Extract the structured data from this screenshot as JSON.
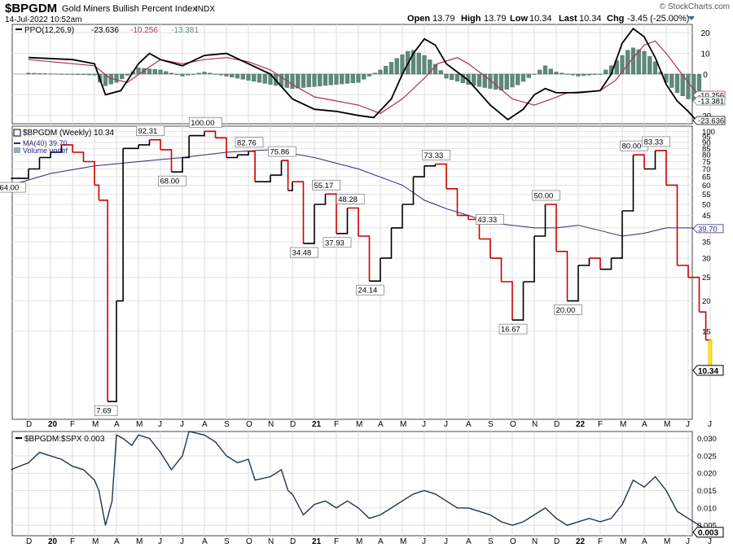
{
  "header": {
    "symbol": "$BPGDM",
    "name": "Gold Miners Bullish Percent Index",
    "exchange": "INDX",
    "date": "14-Jul-2022 10:52am",
    "watermark": "© StockCharts.com",
    "quote": {
      "open_label": "Open",
      "open": "13.79",
      "high_label": "High",
      "high": "13.79",
      "low_label": "Low",
      "low": "10.34",
      "last_label": "Last",
      "last": "10.34",
      "chg_label": "Chg",
      "chg": "-3.45 (-25.00%)"
    }
  },
  "colors": {
    "up": "#000000",
    "down": "#cc0000",
    "ma": "#2a2a80",
    "hist": "#5f8a7a",
    "ppo_signal": "#b03050",
    "highlight": "#ffee00"
  },
  "months": [
    "D",
    "20",
    "F",
    "M",
    "A",
    "M",
    "J",
    "J",
    "A",
    "S",
    "O",
    "N",
    "D",
    "21",
    "F",
    "M",
    "A",
    "M",
    "J",
    "J",
    "A",
    "S",
    "O",
    "N",
    "D",
    "22",
    "F",
    "M",
    "A",
    "M",
    "J",
    "J"
  ],
  "chart_data": [
    {
      "type": "line",
      "panel": "ppo",
      "legend": {
        "name": "PPO(12,26,9)",
        "ppo": "-23.636",
        "signal": "-10.256",
        "hist": "-13.381"
      },
      "yticks": [
        20,
        10,
        0,
        -10,
        -20
      ],
      "ylim": [
        -24,
        24
      ],
      "markers": {
        "signal": "-10.256",
        "hist": "-13.381",
        "ppo": "-23.636"
      },
      "series": [
        {
          "name": "PPO",
          "points": [
            [
              0,
              8
            ],
            [
              2,
              7
            ],
            [
              3,
              5
            ],
            [
              3.5,
              -10
            ],
            [
              4.2,
              -8
            ],
            [
              5,
              5
            ],
            [
              5.5,
              10
            ],
            [
              6,
              7
            ],
            [
              7,
              4
            ],
            [
              8,
              9
            ],
            [
              9,
              10
            ],
            [
              10,
              5
            ],
            [
              11,
              0
            ],
            [
              12,
              -12
            ],
            [
              13,
              -17
            ],
            [
              14,
              -18
            ],
            [
              15,
              -20
            ],
            [
              15.7,
              -21
            ],
            [
              16.5,
              -12
            ],
            [
              17,
              0
            ],
            [
              17.5,
              10
            ],
            [
              18,
              17
            ],
            [
              18.5,
              14
            ],
            [
              19,
              5
            ],
            [
              20,
              -3
            ],
            [
              21,
              -15
            ],
            [
              21.8,
              -22
            ],
            [
              22.5,
              -17
            ],
            [
              23,
              -10
            ],
            [
              23.5,
              -7
            ],
            [
              24,
              -9
            ],
            [
              25,
              -9
            ],
            [
              26,
              -8
            ],
            [
              26.5,
              0
            ],
            [
              27,
              15
            ],
            [
              27.5,
              22
            ],
            [
              28,
              18
            ],
            [
              28.5,
              8
            ],
            [
              29,
              -5
            ],
            [
              29.5,
              -13
            ],
            [
              30,
              -18
            ],
            [
              30.5,
              -24
            ]
          ]
        },
        {
          "name": "Signal",
          "points": [
            [
              0,
              7
            ],
            [
              3,
              4
            ],
            [
              3.7,
              -2
            ],
            [
              4.5,
              -4
            ],
            [
              5.3,
              2
            ],
            [
              6,
              7
            ],
            [
              7,
              5
            ],
            [
              8,
              7
            ],
            [
              9,
              8
            ],
            [
              10,
              6
            ],
            [
              11,
              2
            ],
            [
              12,
              -5
            ],
            [
              13,
              -11
            ],
            [
              14,
              -13
            ],
            [
              15,
              -15
            ],
            [
              16,
              -19
            ],
            [
              17,
              -12
            ],
            [
              18,
              -2
            ],
            [
              18.6,
              5
            ],
            [
              19.5,
              8
            ],
            [
              20,
              5
            ],
            [
              21,
              -3
            ],
            [
              22,
              -12
            ],
            [
              23,
              -15
            ],
            [
              23.8,
              -12
            ],
            [
              24.5,
              -9
            ],
            [
              26,
              -8
            ],
            [
              26.7,
              -3
            ],
            [
              27.5,
              8
            ],
            [
              28,
              14
            ],
            [
              28.5,
              16
            ],
            [
              29,
              10
            ],
            [
              29.5,
              3
            ],
            [
              30,
              -4
            ],
            [
              30.5,
              -10.3
            ]
          ]
        }
      ],
      "hist": [
        [
          0,
          0.5
        ],
        [
          3,
          -0.5
        ],
        [
          3.4,
          -6
        ],
        [
          4,
          -4
        ],
        [
          4.3,
          -2
        ],
        [
          5,
          3
        ],
        [
          6,
          2
        ],
        [
          7,
          -1
        ],
        [
          8,
          1
        ],
        [
          9,
          -1
        ],
        [
          10,
          -3
        ],
        [
          11,
          -5
        ],
        [
          12,
          -7
        ],
        [
          13,
          -6
        ],
        [
          14,
          -5
        ],
        [
          15,
          -4
        ],
        [
          16,
          2
        ],
        [
          16.8,
          8
        ],
        [
          17.4,
          12
        ],
        [
          18,
          9
        ],
        [
          18.6,
          4
        ],
        [
          19,
          -2
        ],
        [
          20,
          -5
        ],
        [
          21,
          -7
        ],
        [
          21.6,
          -8
        ],
        [
          22.3,
          -5
        ],
        [
          23,
          0
        ],
        [
          23.5,
          4
        ],
        [
          24,
          1
        ],
        [
          25,
          -1
        ],
        [
          26,
          0
        ],
        [
          26.5,
          4
        ],
        [
          27,
          9
        ],
        [
          27.4,
          13
        ],
        [
          28,
          11
        ],
        [
          28.5,
          6
        ],
        [
          29,
          -4
        ],
        [
          29.5,
          -9
        ],
        [
          30,
          -12
        ],
        [
          30.5,
          -13.4
        ]
      ]
    },
    {
      "type": "line",
      "panel": "price",
      "legend": {
        "name": "$BPGDM (Weekly) 10.34",
        "ma": "MA(40) 39.70",
        "volume": "Volume undef"
      },
      "yscale": "log",
      "yticks": [
        100,
        95,
        90,
        85,
        80,
        75,
        70,
        65,
        60,
        55,
        50,
        45,
        40,
        35,
        30,
        25,
        20,
        15
      ],
      "ylim": [
        6.5,
        105
      ],
      "last_value": "10.34",
      "ma_value": "39.70",
      "price": [
        [
          -0.8,
          64
        ],
        [
          0,
          70
        ],
        [
          0.5,
          78
        ],
        [
          1,
          82
        ],
        [
          1.5,
          88
        ],
        [
          2,
          82
        ],
        [
          2.5,
          75
        ],
        [
          3,
          60
        ],
        [
          3.2,
          52
        ],
        [
          3.6,
          7.69
        ],
        [
          4,
          20
        ],
        [
          4.3,
          85
        ],
        [
          5,
          88
        ],
        [
          5.5,
          92.31
        ],
        [
          6,
          84
        ],
        [
          6.5,
          68
        ],
        [
          7,
          78
        ],
        [
          7.3,
          96
        ],
        [
          8,
          100
        ],
        [
          8.5,
          94
        ],
        [
          9,
          78
        ],
        [
          9.5,
          80
        ],
        [
          10,
          82.76
        ],
        [
          10.3,
          62
        ],
        [
          11,
          66
        ],
        [
          11.5,
          75.86
        ],
        [
          11.8,
          57
        ],
        [
          12,
          62
        ],
        [
          12.5,
          34.48
        ],
        [
          13,
          50
        ],
        [
          13.5,
          55.17
        ],
        [
          14,
          37.93
        ],
        [
          14.5,
          48.28
        ],
        [
          15,
          37
        ],
        [
          15.5,
          24.14
        ],
        [
          16,
          30
        ],
        [
          16.5,
          40
        ],
        [
          17,
          50
        ],
        [
          17.5,
          65
        ],
        [
          18,
          72
        ],
        [
          18.5,
          73.33
        ],
        [
          19,
          58
        ],
        [
          19.5,
          45
        ],
        [
          20,
          43.33
        ],
        [
          20.5,
          36
        ],
        [
          21,
          30
        ],
        [
          21.5,
          24
        ],
        [
          22,
          16.67
        ],
        [
          22.5,
          24
        ],
        [
          23,
          37
        ],
        [
          23.5,
          50
        ],
        [
          24,
          32
        ],
        [
          24.5,
          20
        ],
        [
          25,
          28
        ],
        [
          25.5,
          30
        ],
        [
          26,
          27
        ],
        [
          26.5,
          30
        ],
        [
          27,
          47
        ],
        [
          27.5,
          80
        ],
        [
          28,
          70
        ],
        [
          28.5,
          83.33
        ],
        [
          29,
          60
        ],
        [
          29.5,
          28
        ],
        [
          30,
          25
        ],
        [
          30.5,
          18
        ],
        [
          30.8,
          13.79
        ],
        [
          31,
          10.34
        ]
      ],
      "ma": [
        [
          -0.8,
          60
        ],
        [
          1,
          67
        ],
        [
          3,
          72
        ],
        [
          5,
          75
        ],
        [
          7,
          78
        ],
        [
          9,
          82
        ],
        [
          11,
          84
        ],
        [
          13,
          78
        ],
        [
          15,
          70
        ],
        [
          17,
          60
        ],
        [
          18,
          52
        ],
        [
          19,
          48
        ],
        [
          20,
          45
        ],
        [
          21,
          42
        ],
        [
          22,
          41
        ],
        [
          23,
          40
        ],
        [
          24,
          40
        ],
        [
          25,
          41
        ],
        [
          26,
          39
        ],
        [
          27,
          37
        ],
        [
          28,
          38
        ],
        [
          29,
          40
        ],
        [
          30,
          40
        ],
        [
          31,
          39.7
        ]
      ],
      "annotations": [
        {
          "label": "64.00",
          "x": -0.8,
          "y": 64,
          "pos": "below"
        },
        {
          "label": "7.69",
          "x": 3.6,
          "y": 7.69,
          "pos": "below"
        },
        {
          "label": "92.31",
          "x": 5.5,
          "y": 92.31,
          "pos": "above"
        },
        {
          "label": "68.00",
          "x": 6.5,
          "y": 68,
          "pos": "below"
        },
        {
          "label": "100.00",
          "x": 7.9,
          "y": 100,
          "pos": "above"
        },
        {
          "label": "82.76",
          "x": 10,
          "y": 82.76,
          "pos": "above"
        },
        {
          "label": "75.86",
          "x": 11.5,
          "y": 75.86,
          "pos": "above"
        },
        {
          "label": "34.48",
          "x": 12.5,
          "y": 34.48,
          "pos": "below"
        },
        {
          "label": "55.17",
          "x": 13.5,
          "y": 55.17,
          "pos": "above"
        },
        {
          "label": "37.93",
          "x": 14,
          "y": 37.93,
          "pos": "below"
        },
        {
          "label": "48.28",
          "x": 14.6,
          "y": 48.28,
          "pos": "above"
        },
        {
          "label": "24.14",
          "x": 15.5,
          "y": 24.14,
          "pos": "below"
        },
        {
          "label": "73.33",
          "x": 18.5,
          "y": 73.33,
          "pos": "above"
        },
        {
          "label": "43.33",
          "x": 20.2,
          "y": 43.33,
          "pos": "right"
        },
        {
          "label": "16.67",
          "x": 22,
          "y": 16.67,
          "pos": "below"
        },
        {
          "label": "50.00",
          "x": 23.5,
          "y": 50,
          "pos": "above"
        },
        {
          "label": "20.00",
          "x": 24.5,
          "y": 20,
          "pos": "below"
        },
        {
          "label": "80.00",
          "x": 27.5,
          "y": 80,
          "pos": "above"
        },
        {
          "label": "83.33",
          "x": 28.5,
          "y": 83.33,
          "pos": "above"
        }
      ]
    },
    {
      "type": "line",
      "panel": "ratio",
      "legend": {
        "name": "$BPGDM:$SPX 0.003"
      },
      "yticks": [
        "0.030",
        "0.025",
        "0.020",
        "0.015",
        "0.010",
        "0.005"
      ],
      "ylim": [
        0.002,
        0.032
      ],
      "last_value": "0.003",
      "points": [
        [
          -0.8,
          0.021
        ],
        [
          0,
          0.023
        ],
        [
          0.5,
          0.026
        ],
        [
          1,
          0.025
        ],
        [
          1.5,
          0.024
        ],
        [
          2,
          0.022
        ],
        [
          2.5,
          0.021
        ],
        [
          3,
          0.018
        ],
        [
          3.2,
          0.015
        ],
        [
          3.5,
          0.005
        ],
        [
          3.8,
          0.012
        ],
        [
          4,
          0.031
        ],
        [
          4.3,
          0.03
        ],
        [
          4.7,
          0.028
        ],
        [
          5,
          0.031
        ],
        [
          5.5,
          0.03
        ],
        [
          6,
          0.026
        ],
        [
          6.5,
          0.021
        ],
        [
          7,
          0.025
        ],
        [
          7.3,
          0.032
        ],
        [
          8,
          0.031
        ],
        [
          8.5,
          0.029
        ],
        [
          9,
          0.025
        ],
        [
          9.5,
          0.023
        ],
        [
          10,
          0.024
        ],
        [
          10.3,
          0.018
        ],
        [
          11,
          0.019
        ],
        [
          11.5,
          0.021
        ],
        [
          11.8,
          0.015
        ],
        [
          12,
          0.014
        ],
        [
          12.5,
          0.008
        ],
        [
          13,
          0.011
        ],
        [
          13.5,
          0.012
        ],
        [
          14,
          0.01
        ],
        [
          14.5,
          0.012
        ],
        [
          15,
          0.01
        ],
        [
          15.5,
          0.007
        ],
        [
          16,
          0.008
        ],
        [
          16.5,
          0.01
        ],
        [
          17,
          0.012
        ],
        [
          17.5,
          0.014
        ],
        [
          18,
          0.015
        ],
        [
          18.5,
          0.014
        ],
        [
          19,
          0.012
        ],
        [
          19.5,
          0.01
        ],
        [
          20,
          0.01
        ],
        [
          20.5,
          0.009
        ],
        [
          21,
          0.008
        ],
        [
          21.5,
          0.006
        ],
        [
          22,
          0.005
        ],
        [
          22.5,
          0.006
        ],
        [
          23,
          0.008
        ],
        [
          23.5,
          0.01
        ],
        [
          24,
          0.007
        ],
        [
          24.5,
          0.005
        ],
        [
          25,
          0.006
        ],
        [
          25.5,
          0.007
        ],
        [
          26,
          0.006
        ],
        [
          26.5,
          0.007
        ],
        [
          27,
          0.011
        ],
        [
          27.5,
          0.018
        ],
        [
          28,
          0.016
        ],
        [
          28.5,
          0.019
        ],
        [
          29,
          0.015
        ],
        [
          29.5,
          0.009
        ],
        [
          30,
          0.007
        ],
        [
          30.5,
          0.005
        ],
        [
          31,
          0.003
        ]
      ]
    }
  ]
}
